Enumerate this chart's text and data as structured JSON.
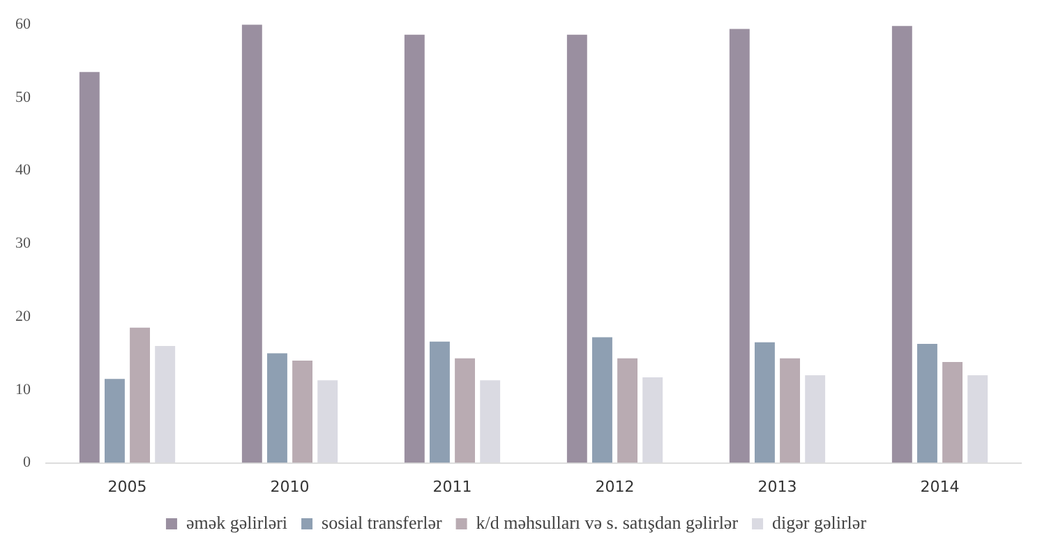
{
  "chart_data": {
    "type": "bar",
    "categories": [
      "2005",
      "2010",
      "2011",
      "2012",
      "2013",
      "2014"
    ],
    "series": [
      {
        "name": "əmək gəlirləri",
        "color": "#9a8fa0",
        "values": [
          53.5,
          60,
          58.6,
          58.6,
          59.4,
          59.8
        ]
      },
      {
        "name": "sosial transferlər",
        "color": "#8e9fb2",
        "values": [
          11.5,
          15,
          16.6,
          17.2,
          16.5,
          16.3
        ]
      },
      {
        "name": "k/d məhsulları və s. satışdan gəlirlər",
        "color": "#b9abb2",
        "values": [
          18.5,
          14,
          14.3,
          14.3,
          14.3,
          13.8
        ]
      },
      {
        "name": "digər gəlirlər",
        "color": "#dadae2",
        "values": [
          16,
          11.3,
          11.3,
          11.7,
          12,
          12
        ]
      }
    ],
    "ylim": [
      0,
      60
    ],
    "yticks": [
      0,
      10,
      20,
      30,
      40,
      50,
      60
    ],
    "grid": false,
    "legend": "bottom"
  }
}
